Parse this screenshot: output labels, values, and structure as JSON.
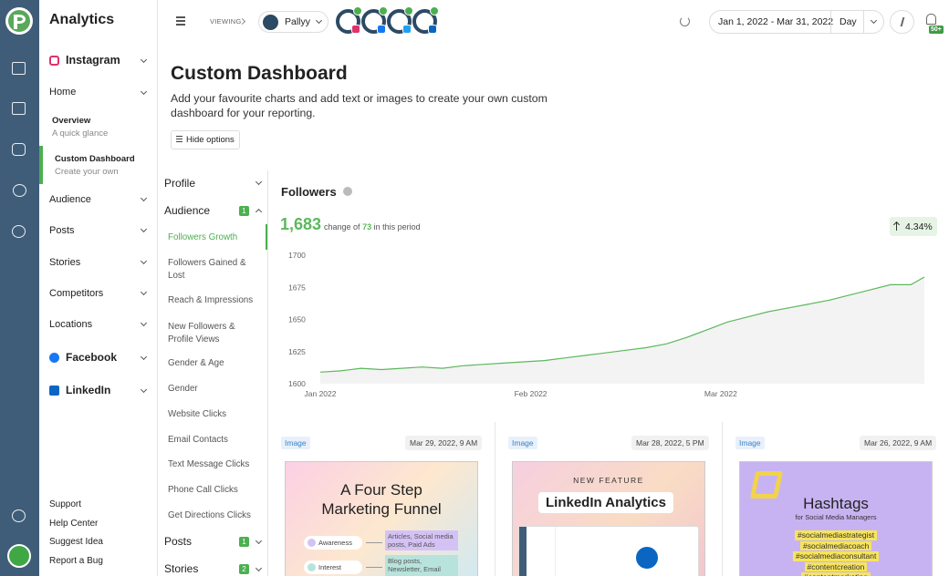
{
  "sidebar": {
    "title": "Analytics",
    "instagram": "Instagram",
    "home": "Home",
    "overview": "Overview",
    "overview_sub": "A quick glance",
    "custom": "Custom Dashboard",
    "custom_sub": "Create your own",
    "sections": [
      "Audience",
      "Posts",
      "Stories",
      "Competitors",
      "Locations"
    ],
    "facebook": "Facebook",
    "linkedin": "LinkedIn",
    "footer": [
      "Support",
      "Help Center",
      "Suggest Idea",
      "Report a Bug"
    ]
  },
  "topbar": {
    "viewing": "VIEWING",
    "workspace": "Pallyy",
    "date_range": "Jan 1, 2022 - Mar 31, 2022",
    "interval": "Day",
    "badge": "50+"
  },
  "header": {
    "title": "Custom Dashboard",
    "description": "Add your favourite charts and add text or images to create your own custom dashboard for your reporting.",
    "button": "Hide options"
  },
  "menu": {
    "profile": "Profile",
    "audience": "Audience",
    "audience_count": 1,
    "items": [
      "Followers Growth",
      "Followers Gained & Lost",
      "Reach & Impressions",
      "New Followers & Profile Views",
      "Gender & Age",
      "Gender",
      "Website Clicks",
      "Email Contacts",
      "Text Message Clicks",
      "Phone Call Clicks",
      "Get Directions Clicks"
    ],
    "posts": "Posts",
    "posts_count": 1,
    "stories": "Stories",
    "stories_count": 2
  },
  "chart_data": {
    "type": "line",
    "title": "Followers",
    "total": "1,683",
    "change_prefix": "change of",
    "change": "73",
    "change_suffix": "in this period",
    "growth": "4.34%",
    "color": "#5cb85c",
    "x": [
      0,
      3,
      6,
      9,
      12,
      15,
      18,
      21,
      24,
      27,
      30,
      33,
      36,
      39,
      42,
      45,
      48,
      51,
      54,
      57,
      60,
      63,
      66,
      69,
      72,
      75,
      78,
      81,
      84,
      87,
      89
    ],
    "values": [
      1609,
      1610,
      1612,
      1611,
      1612,
      1613,
      1612,
      1614,
      1615,
      1616,
      1617,
      1618,
      1620,
      1622,
      1624,
      1626,
      1628,
      1631,
      1636,
      1642,
      1648,
      1652,
      1656,
      1659,
      1662,
      1665,
      1669,
      1673,
      1677,
      1677,
      1683
    ],
    "xlim": [
      0,
      89
    ],
    "xticks": [
      {
        "value": 0,
        "label": "Jan 2022"
      },
      {
        "value": 31,
        "label": "Feb 2022"
      },
      {
        "value": 59,
        "label": "Mar 2022"
      }
    ],
    "ylim": [
      1600,
      1700
    ],
    "yticks": [
      1600,
      1625,
      1650,
      1675,
      1700
    ]
  },
  "posts": [
    {
      "tag": "Image",
      "date": "Mar 29, 2022, 9 AM",
      "heading": [
        "A Four Step",
        "Marketing Funnel"
      ],
      "steps": [
        {
          "label": "Awareness",
          "detail": "Articles, Social media posts, Paid Ads"
        },
        {
          "label": "Interest",
          "detail": "Blog posts, Newsletter, Email sequence"
        }
      ]
    },
    {
      "tag": "Image",
      "date": "Mar 28, 2022, 5 PM",
      "kicker": "NEW FEATURE",
      "heading": [
        "LinkedIn Analytics"
      ]
    },
    {
      "tag": "Image",
      "date": "Mar 26, 2022, 9 AM",
      "heading": [
        "Hashtags"
      ],
      "subheading": "for Social Media Managers",
      "hashtags": [
        "#socialmediastrategist",
        "#socialmediacoach",
        "#socialmediaconsultant",
        "#contentcreation",
        "#contentmarketing"
      ]
    }
  ]
}
